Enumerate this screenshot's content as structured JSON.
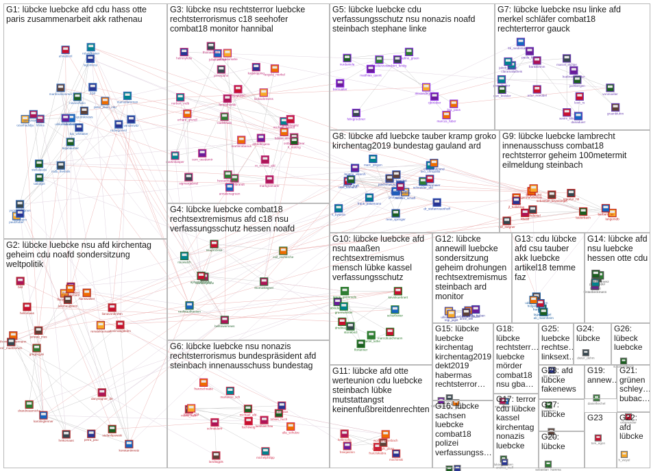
{
  "groups": [
    {
      "id": "G1",
      "label": "G1: lübcke luebcke afd cdu hass otte\nparis zusammenarbeit akk rathenau",
      "color": "#3d6db5"
    },
    {
      "id": "G2",
      "label": "G2: lübcke luebcke nsu afd kirchentag\ngeheim cdu noafd sondersitzung\nweltpolitik",
      "color": "#b03030"
    },
    {
      "id": "G3",
      "label": "G3: lübcke nsu rechtsterror luebcke\nrechtsterrorismus c18 seehofer\ncombat18 monitor hannibal",
      "color": "#c0307a"
    },
    {
      "id": "G4",
      "label": "G4: lübcke luebcke combat18\nrechtsextremismus afd c18 nsu\nverfassungsschutz hessen noafd",
      "color": "#2f6b3a"
    },
    {
      "id": "G5",
      "label": "G5: lübcke luebcke cdu\nverfassungsschutz nsu nonazis noafd\nsteinbach stephane linke",
      "color": "#8a2be2"
    },
    {
      "id": "G6",
      "label": "G6: lübcke luebcke nsu nonazis\nrechtsterrorismus bundespräsident afd\nsteinbach innenausschuss bundestag",
      "color": "#d03050"
    },
    {
      "id": "G7",
      "label": "G7: lübcke luebcke nsu linke afd\nmerkel schläfer combat18\nrechterterror gauck",
      "color": "#6a3fb0"
    },
    {
      "id": "G8",
      "label": "G8: lübcke afd luebcke tauber kramp groko\nkirchentag2019 bundestag gauland ard",
      "color": "#3050b0"
    },
    {
      "id": "G9",
      "label": "G9: lübcke luebcke lambrecht\ninnenausschuss combat18\nrechtsterror geheim 100metermit\neilmeldung steinbach",
      "color": "#c02020"
    },
    {
      "id": "G10",
      "label": "G10: lübcke luebcke afd\nnsu maaßen\nrechtsextremismus\nmensch lübke kassel\nverfassungsschutz",
      "color": "#2a7a2a"
    },
    {
      "id": "G11",
      "label": "G11: lübcke afd otte\nwerteunion cdu luebcke\nsteinbach lübke\nmutstattangst\nkeinenfußbreitdenrechten",
      "color": "#d04040"
    },
    {
      "id": "G12",
      "label": "G12: lübcke\nannewill luebcke\nsondersitzung\ngeheim drohungen\nrechtsextremismus\nsteinbach ard\nmonitor",
      "color": "#4040a0"
    },
    {
      "id": "G13",
      "label": "G13: cdu lübcke\nafd csu tauber\nakk luebcke\nartikel18 temme\nfaz",
      "color": "#2060a0"
    },
    {
      "id": "G14",
      "label": "G14: lübcke afd\nnsu luebcke\nhessen otte cdu",
      "color": "#505050"
    },
    {
      "id": "G15",
      "label": "G15: lübcke\nluebcke\nkirchentag\nkirchentag2019\ndekt2019\nhabermas\nrechtsterror…",
      "color": "#707070"
    },
    {
      "id": "G16",
      "label": "G16: lübcke\nsachsen\nluebcke\ncombat18\npolizei\nverfassungss…",
      "color": "#707070"
    },
    {
      "id": "G17",
      "label": "G17: terror\ncdu lübcke\nkassel\nkirchentag\nnonazis\nluebcke",
      "color": "#707070"
    },
    {
      "id": "G18",
      "label": "G18:\nlübcke\nrechtsterr…\nluebcke\nmörder\ncombat18\nnsu gba…",
      "color": "#707070"
    },
    {
      "id": "G19",
      "label": "G19:\nannew…",
      "color": "#707070"
    },
    {
      "id": "G20",
      "label": "G20:\nlübcke",
      "color": "#707070"
    },
    {
      "id": "G21",
      "label": "G21:\ngrünen\nschley…\nbubac…",
      "color": "#707070"
    },
    {
      "id": "G22",
      "label": "G22:\nafd\nlübcke",
      "color": "#707070"
    },
    {
      "id": "G23",
      "label": "G23",
      "color": "#707070"
    },
    {
      "id": "G24",
      "label": "G24:\nlübcke",
      "color": "#707070"
    },
    {
      "id": "G25",
      "label": "G25:\nluebcke\nrechtse…\nlinksext…",
      "color": "#707070"
    },
    {
      "id": "G26",
      "label": "G26:\nlübeck\nluebcke",
      "color": "#707070"
    },
    {
      "id": "G27",
      "label": "G27:\nlübcke",
      "color": "#707070"
    },
    {
      "id": "G28",
      "label": "G28: afd\nlübcke\nfakenews",
      "color": "#707070"
    }
  ],
  "nodes": {
    "G1": [
      "tatjabaumer",
      "hhlms",
      "yvonnemagnus",
      "manfredsommer",
      "rolandkaiser",
      "stellalaudu",
      "kai_whittaker",
      "paulztuber",
      "ozanhadidja",
      "annlunamayer",
      "ZDF",
      "vandenvitz",
      "ninanehalio",
      "peter_stein_cdu",
      "fratisvalm",
      "rudiegomez",
      "sputniknews",
      "lagomoca",
      "ahwabenl",
      "mdb_thelhols",
      "manuelaroman",
      "fsbratislava",
      "ulrikeleuschner",
      "tatbirgel"
    ],
    "G2": [
      "karolinglenner",
      "konstantinnotz",
      "danyvagner_de",
      "thomasoppermann",
      "gregorgysi",
      "renatekuenast",
      "rolf_muetzenich",
      "florianpost",
      "heikomaas",
      "jakobaugstein",
      "sevimdagdelen",
      "drandreasmicha",
      "petra_pau",
      "lianavonbrohm",
      "bild",
      "stefanlipowski",
      "marcusfaber",
      "christianmatti",
      "juneau_inus",
      "hellomaas",
      "hanswalser"
    ],
    "G3": [
      "erhard_grundl",
      "martinkasper",
      "lookaclemens",
      "alfredbojana",
      "juliaklockner",
      "helmnyfelis",
      "thomaswalz",
      "fernsehkritik",
      "michael_brandt",
      "sigmargabriel",
      "michaelbrandt",
      "annalenagruen",
      "nadirkhalo",
      "markgramarer",
      "ostberlinerbear",
      "petrapaumahe",
      "martinrabanus",
      "m_richard_afd",
      "hessenfuerdich",
      "norbert_mdb",
      "k_resting",
      "katjakipping",
      "anjapolski",
      "danielaspitz",
      "jensspahn",
      "cem_oezdemir",
      "fabian_wrede",
      "angela_merkel"
    ],
    "G4": [
      "belltowernews",
      "nsuwatch",
      "martinlejeune",
      "nsuprozess",
      "thomaslagner",
      "exif_recherche",
      "aptvorsitzender",
      "raulkrauthausen"
    ],
    "G5": [
      "bernualter",
      "sebastianzeiss",
      "robert_ferdig",
      "marcus_faber",
      "lisa_paus",
      "nurdaniela",
      "alexanderpeters",
      "matthias_quent",
      "felixgroebner",
      "cjbtreiber",
      "pauline_gruen"
    ],
    "G6": [
      "ulla_schulze",
      "schneiderfr",
      "maria_klein",
      "laetitiaschau",
      "michael_afd",
      "kaiser_spd",
      "michelphilipp",
      "tobias_huch",
      "fuellhaus",
      "franzschnabe",
      "landtagpls",
      "fachtweig",
      "marianne_sch"
    ],
    "G7": [
      "frankklemm",
      "marcel_eichler",
      "jachbergen",
      "pascalmaier",
      "uwe_kreisler",
      "claramaliatheis",
      "danaduerr",
      "ltk_niedersachsen",
      "gruenbluhm",
      "sevim_kilic",
      "artur_noeddel",
      "kuebraweltmeer",
      "vonmoeller",
      "leon_rs",
      "paula_kahn",
      "jakob_kerner"
    ],
    "G8": [
      "meister_schaff",
      "uwe_kamann",
      "beatrix_vstorch",
      "rainer_kraft",
      "joachimwundrak",
      "prohnisler",
      "schneider_afd",
      "nicole_hoechst",
      "frank_pasemann",
      "rene_springer",
      "thomas_seitz",
      "dr_stefanrouenhoff",
      "tino_chrupalla",
      "elenaferdinand",
      "marc_jongen",
      "muenzenmaier",
      "tobiasmatthias",
      "s_bystron"
    ],
    "G9": [
      "lauterbach",
      "langemdb",
      "gerdfahrenholz",
      "barbara_sx",
      "sebastian_krumbiegel",
      "kbastl",
      "reporter_hh",
      "ostsee",
      "jf_halleblog",
      "ralf_stegner",
      "bmjv_bund",
      "ruefsdaniel"
    ],
    "G10": [
      "florianner",
      "timon_gremmels",
      "marcobuschmann",
      "fabiodemasi",
      "kevinkuehnert",
      "stonebird",
      "gruenwinkler",
      "dmdinagel",
      "marcel_luthe",
      "scharfzwier"
    ],
    "G11": [
      "franziskabra",
      "hellenaflg",
      "christoph_ploss",
      "mxchinski",
      "freiejasmin",
      "wolfgangbosbach"
    ],
    "G12": [
      "ullrichlanna",
      "tilman_kuban",
      "regi_jagst",
      "sebastian_fiedler",
      "anne_will"
    ],
    "G13": [
      "udohemmelgarn",
      "tagesspiegel",
      "franc_vogt",
      "ab_mannheim",
      "holger_k"
    ],
    "G14": [
      "tristanbeckmann",
      "pachtrieder",
      "larshart",
      "friedrichmerz",
      "djnakal"
    ],
    "G15": [
      "ralf_stegner_k",
      "dekt_info",
      "gute_gruene"
    ],
    "G16": [
      "sachsenpolizei",
      "heikoteggatz"
    ],
    "G17": [
      "lukas_hansen",
      "andrea_wulf"
    ],
    "G18": [
      "chrisz",
      "mia_maren"
    ],
    "G19": [
      "danielhechel"
    ],
    "G20": [
      "sebastian_hamma"
    ],
    "G21": [
      "erbgrandier"
    ],
    "G22": [
      "h_weyel"
    ],
    "G23": [
      "tom_egon"
    ],
    "G24": [
      "dieter_dehm"
    ],
    "G25": [
      "jeo_brunner"
    ],
    "G26": [
      "susannefferich"
    ],
    "G27": [
      "lahnaxi"
    ],
    "G28": [
      "basteboro"
    ]
  }
}
